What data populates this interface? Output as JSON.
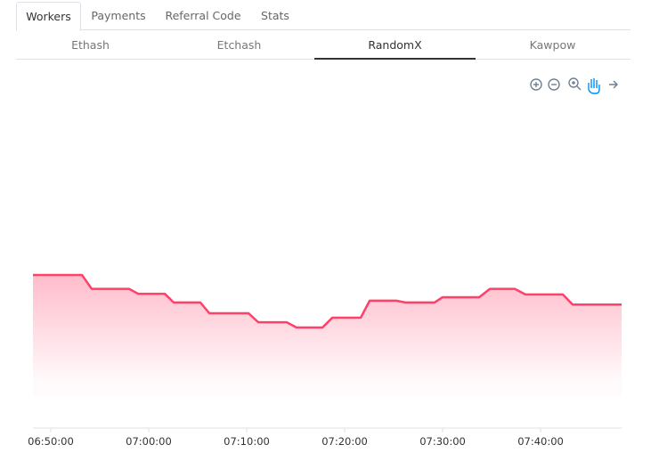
{
  "tabs": [
    "Workers",
    "Payments",
    "Referral Code",
    "Stats"
  ],
  "subtabs": [
    "Ethash",
    "Etchash",
    "RandomX",
    "Kawpow"
  ],
  "chart_data": {
    "type": "area",
    "color": "#ff4069",
    "x": [
      "06:48:11",
      "06:50:16",
      "06:53:11",
      "06:54:11",
      "06:58:00",
      "06:58:55",
      "07:01:38",
      "07:02:33",
      "07:05:16",
      "07:06:11",
      "07:10:11",
      "07:11:11",
      "07:14:05",
      "07:15:05",
      "07:17:44",
      "07:18:44",
      "07:21:38",
      "07:22:33",
      "07:25:16",
      "07:26:11",
      "07:29:11",
      "07:30:00",
      "07:33:44",
      "07:34:49",
      "07:37:22",
      "07:38:27",
      "07:42:16",
      "07:43:16",
      "07:48:16"
    ],
    "values": [
      44,
      44,
      44,
      40,
      40,
      38.6,
      38.6,
      36.1,
      36.1,
      33,
      33,
      30.4,
      30.4,
      28.9,
      28.9,
      31.7,
      31.7,
      36.6,
      36.6,
      36.1,
      36.1,
      37.6,
      37.6,
      40,
      40,
      38.4,
      38.4,
      35.5,
      35.5
    ],
    "xlim": [
      "06:48:11",
      "07:48:16"
    ],
    "ylim": [
      0,
      100
    ],
    "xticks": [
      "06:50:00",
      "07:00:00",
      "07:10:00",
      "07:20:00",
      "07:30:00",
      "07:40:00"
    ]
  }
}
